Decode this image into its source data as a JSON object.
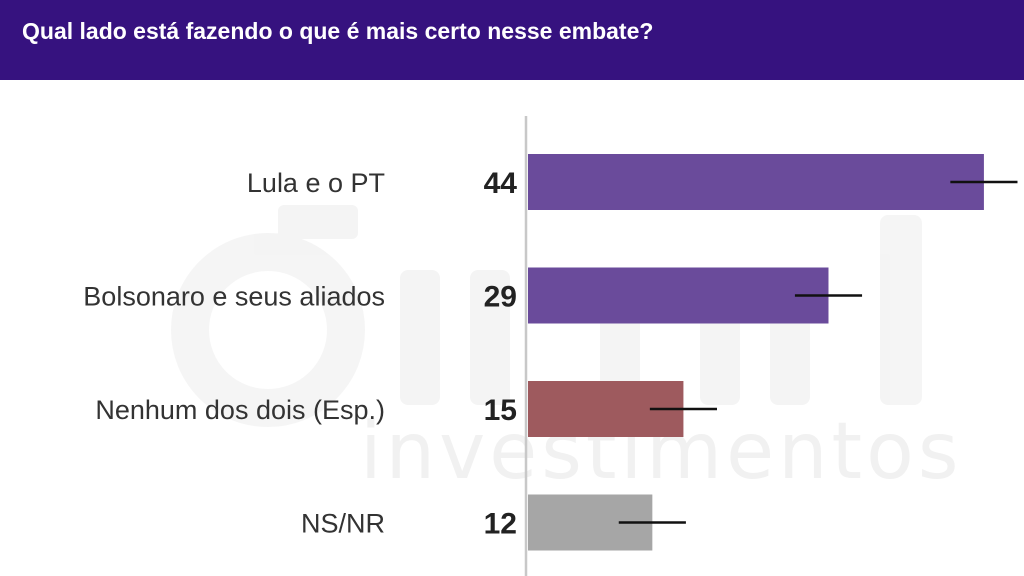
{
  "header": {
    "title": "Qual lado está fazendo o que é mais certo nesse embate?"
  },
  "colors": {
    "header_bg": "#36127f",
    "axis": "#c8c8c8"
  },
  "chart_data": {
    "type": "bar",
    "orientation": "horizontal",
    "categories": [
      "Lula e o PT",
      "Bolsonaro e seus aliados",
      "Nenhum dos dois (Esp.)",
      "NS/NR"
    ],
    "values": [
      44,
      29,
      15,
      12
    ],
    "value_labels": [
      "44",
      "29",
      "15",
      "12"
    ],
    "error_margin": 3,
    "bar_colors": [
      "#6a4b9b",
      "#6a4b9b",
      "#9e5a5e",
      "#a6a6a6"
    ],
    "xlim": [
      0,
      47
    ],
    "grid": false,
    "legend": "none"
  }
}
